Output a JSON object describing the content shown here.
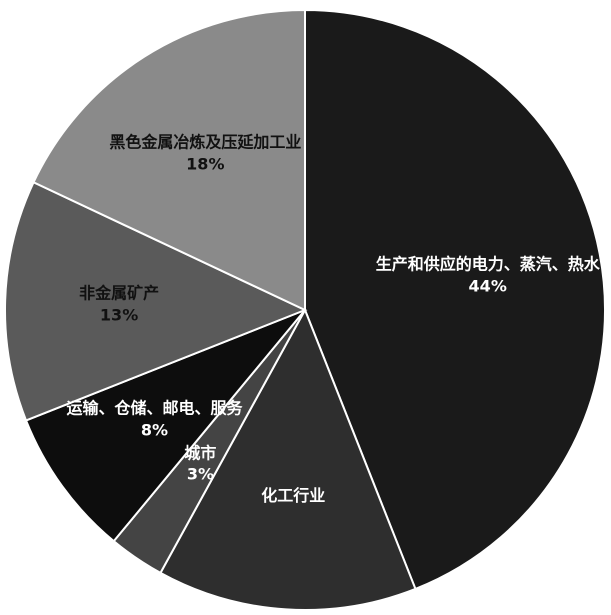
{
  "chart_data": {
    "type": "pie",
    "categories": [
      "生产和供应的电力、蒸汽、热水",
      "化工行业",
      "城市",
      "运输、仓储、邮电、服务",
      "非金属矿产",
      "黑色金属冶炼及压延加工业"
    ],
    "values": [
      44,
      14,
      3,
      8,
      13,
      18
    ],
    "value_labels": [
      "44%",
      null,
      "3%",
      "8%",
      "13%",
      "18%"
    ],
    "colors": [
      "#1a1a1a",
      "#2e2e2e",
      "#444444",
      "#0d0d0d",
      "#5a5a5a",
      "#8a8a8a"
    ]
  }
}
